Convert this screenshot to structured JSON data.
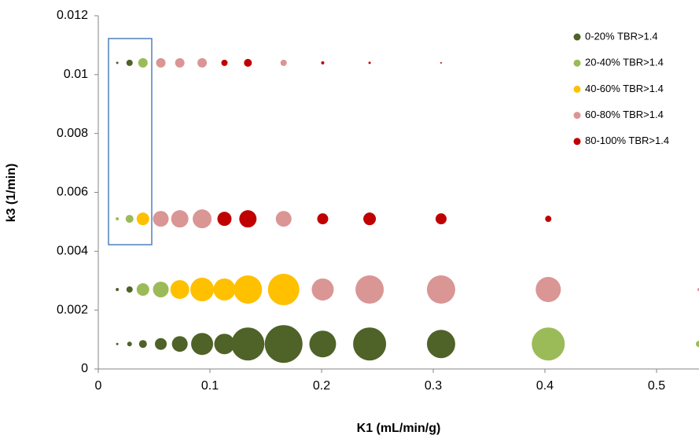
{
  "chart_data": {
    "type": "bubble",
    "x_label": "K1 (mL/min/g)",
    "y_label": "k3 (1/min)",
    "xlim": [
      0,
      0.538
    ],
    "xticks": [
      0,
      0.1,
      0.2,
      0.3,
      0.4,
      0.5
    ],
    "ylim": [
      0,
      0.012
    ],
    "yticks": [
      0,
      0.002,
      0.004,
      0.006,
      0.008,
      0.01,
      0.012
    ],
    "legend": "upper right",
    "series": [
      {
        "name": "0-20% TBR>1.4",
        "color": "#4f6228",
        "x": [
          0.017,
          0.028,
          0.04,
          0.056,
          0.073,
          0.093,
          0.113,
          0.134,
          0.166,
          0.201,
          0.243,
          0.307,
          0.017,
          0.028,
          0.017,
          0.028
        ],
        "values": [
          0.00085,
          0.00085,
          0.00085,
          0.00085,
          0.00085,
          0.00085,
          0.00085,
          0.00085,
          0.00085,
          0.00085,
          0.00085,
          0.00085,
          0.0027,
          0.0027,
          0.0104,
          0.0104
        ],
        "sizes": [
          1.5,
          3,
          5,
          7.5,
          10,
          14,
          13,
          21,
          24,
          17,
          21,
          18,
          2,
          4,
          1.5,
          4
        ]
      },
      {
        "name": "20-40% TBR>1.4",
        "color": "#9bbb59",
        "x": [
          0.403,
          0.538,
          0.04,
          0.056,
          0.017,
          0.028,
          0.04
        ],
        "values": [
          0.00085,
          0.00085,
          0.0027,
          0.0027,
          0.0051,
          0.0051,
          0.0104
        ],
        "sizes": [
          21,
          4,
          8,
          10,
          2,
          5,
          6
        ]
      },
      {
        "name": "40-60% TBR>1.4",
        "color": "#ffc000",
        "x": [
          0.073,
          0.093,
          0.113,
          0.134,
          0.166,
          0.04
        ],
        "values": [
          0.0027,
          0.0027,
          0.0027,
          0.0027,
          0.0027,
          0.0051
        ],
        "sizes": [
          12,
          15,
          14,
          18,
          20,
          8
        ]
      },
      {
        "name": "60-80% TBR>1.4",
        "color": "#d99694",
        "x": [
          0.201,
          0.243,
          0.307,
          0.403,
          0.538,
          0.056,
          0.073,
          0.093,
          0.166,
          0.056,
          0.073,
          0.093,
          0.166
        ],
        "values": [
          0.0027,
          0.0027,
          0.0027,
          0.0027,
          0.0027,
          0.0051,
          0.0051,
          0.0051,
          0.0051,
          0.0104,
          0.0104,
          0.0104,
          0.0104
        ],
        "sizes": [
          14,
          18,
          18,
          16,
          2,
          10,
          11,
          12,
          10,
          6,
          6,
          6,
          4
        ]
      },
      {
        "name": "80-100% TBR>1.4",
        "color": "#c00000",
        "x": [
          0.113,
          0.134,
          0.201,
          0.243,
          0.307,
          0.403,
          0.113,
          0.134,
          0.201,
          0.243,
          0.307
        ],
        "values": [
          0.0051,
          0.0051,
          0.0051,
          0.0051,
          0.0051,
          0.0051,
          0.0104,
          0.0104,
          0.0104,
          0.0104,
          0.0104
        ],
        "sizes": [
          9,
          11,
          7,
          8,
          7,
          4,
          4,
          5,
          2,
          1.5,
          1
        ]
      }
    ]
  }
}
